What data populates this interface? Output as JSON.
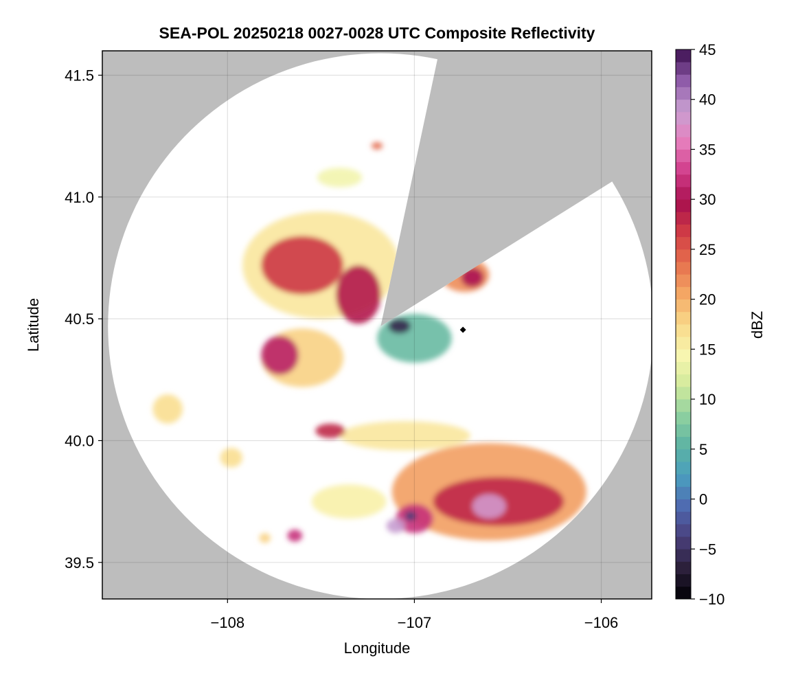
{
  "chart_data": {
    "type": "heatmap",
    "title": "SEA-POL 20250218 0027-0028 UTC Composite Reflectivity",
    "xlabel": "Longitude",
    "ylabel": "Latitude",
    "xlim": [
      -108.67,
      -105.73
    ],
    "ylim": [
      39.35,
      41.6
    ],
    "xticks": [
      -108,
      -107,
      -106
    ],
    "xtick_labels": [
      "−108",
      "−107",
      "−106"
    ],
    "yticks": [
      39.5,
      40.0,
      40.5,
      41.0,
      41.5
    ],
    "ytick_labels": [
      "39.5",
      "40.0",
      "40.5",
      "41.0",
      "41.5"
    ],
    "grid": true,
    "background_color": "#bdbdbd",
    "coverage": {
      "center": [
        -107.18,
        40.47
      ],
      "radius_deg_lat": 1.12,
      "blocked_sectors_deg_from_north": [
        [
          12,
          58
        ]
      ]
    },
    "colorbar": {
      "label": "dBZ",
      "min": -10,
      "max": 45,
      "ticks": [
        -10,
        -5,
        0,
        5,
        10,
        15,
        20,
        25,
        30,
        35,
        40,
        45
      ],
      "tick_labels": [
        "−10",
        "−5",
        "0",
        "5",
        "10",
        "15",
        "20",
        "25",
        "30",
        "35",
        "40",
        "45"
      ],
      "colormap": [
        "#000004",
        "#2b1f3a",
        "#4a3f7a",
        "#4f68b0",
        "#4a9dbf",
        "#5cb3a3",
        "#8dd0a0",
        "#d2ea9c",
        "#f8f6b0",
        "#f9d98a",
        "#f4a765",
        "#e6704d",
        "#d13c45",
        "#a8104e",
        "#d13c8a",
        "#e680be",
        "#c9a0d2",
        "#8e5aa8",
        "#3b0f4f"
      ]
    },
    "echo_regions": [
      {
        "name": "",
        "lon": -107.5,
        "lat": 40.72,
        "rlon": 0.42,
        "rlat": 0.22,
        "dbz": 16
      },
      {
        "name": "",
        "lon": -107.6,
        "lat": 40.72,
        "rlon": 0.22,
        "rlat": 0.12,
        "dbz": 27
      },
      {
        "name": "",
        "lon": -107.3,
        "lat": 40.6,
        "rlon": 0.12,
        "rlat": 0.12,
        "dbz": 29
      },
      {
        "name": "",
        "lon": -107.6,
        "lat": 40.34,
        "rlon": 0.22,
        "rlat": 0.12,
        "dbz": 18
      },
      {
        "name": "",
        "lon": -107.72,
        "lat": 40.35,
        "rlon": 0.1,
        "rlat": 0.08,
        "dbz": 31
      },
      {
        "name": "",
        "lon": -106.73,
        "lat": 40.68,
        "rlon": 0.13,
        "rlat": 0.07,
        "dbz": 22
      },
      {
        "name": "",
        "lon": -106.69,
        "lat": 40.67,
        "rlon": 0.06,
        "rlat": 0.04,
        "dbz": 30
      },
      {
        "name": "",
        "lon": -107.0,
        "lat": 40.42,
        "rlon": 0.2,
        "rlat": 0.1,
        "dbz": 6
      },
      {
        "name": "",
        "lon": -107.08,
        "lat": 40.47,
        "rlon": 0.06,
        "rlat": 0.03,
        "dbz": -6
      },
      {
        "name": "",
        "lon": -106.6,
        "lat": 39.79,
        "rlon": 0.52,
        "rlat": 0.2,
        "dbz": 21
      },
      {
        "name": "",
        "lon": -106.55,
        "lat": 39.75,
        "rlon": 0.35,
        "rlat": 0.1,
        "dbz": 28
      },
      {
        "name": "",
        "lon": -106.6,
        "lat": 39.73,
        "rlon": 0.09,
        "rlat": 0.05,
        "dbz": 38
      },
      {
        "name": "",
        "lon": -107.0,
        "lat": 39.68,
        "rlon": 0.1,
        "rlat": 0.06,
        "dbz": 32
      },
      {
        "name": "",
        "lon": -107.02,
        "lat": 39.69,
        "rlon": 0.03,
        "rlat": 0.02,
        "dbz": -4
      },
      {
        "name": "",
        "lon": -107.1,
        "lat": 39.65,
        "rlon": 0.05,
        "rlat": 0.03,
        "dbz": 39
      },
      {
        "name": "",
        "lon": -107.05,
        "lat": 40.02,
        "rlon": 0.35,
        "rlat": 0.06,
        "dbz": 16
      },
      {
        "name": "",
        "lon": -107.45,
        "lat": 40.04,
        "rlon": 0.08,
        "rlat": 0.03,
        "dbz": 28
      },
      {
        "name": "",
        "lon": -107.35,
        "lat": 39.75,
        "rlon": 0.2,
        "rlat": 0.07,
        "dbz": 15
      },
      {
        "name": "",
        "lon": -108.32,
        "lat": 40.13,
        "rlon": 0.08,
        "rlat": 0.06,
        "dbz": 17
      },
      {
        "name": "",
        "lon": -107.98,
        "lat": 39.93,
        "rlon": 0.06,
        "rlat": 0.04,
        "dbz": 17
      },
      {
        "name": "",
        "lon": -107.64,
        "lat": 39.61,
        "rlon": 0.04,
        "rlat": 0.025,
        "dbz": 32
      },
      {
        "name": "",
        "lon": -107.8,
        "lat": 39.6,
        "rlon": 0.03,
        "rlat": 0.02,
        "dbz": 18
      },
      {
        "name": "",
        "lon": -107.2,
        "lat": 41.21,
        "rlon": 0.03,
        "rlat": 0.015,
        "dbz": 24
      },
      {
        "name": "",
        "lon": -107.4,
        "lat": 41.08,
        "rlon": 0.12,
        "rlat": 0.04,
        "dbz": 14
      }
    ],
    "markers": [
      {
        "lon": -106.74,
        "lat": 40.455,
        "shape": "diamond",
        "color": "#000000"
      }
    ]
  }
}
